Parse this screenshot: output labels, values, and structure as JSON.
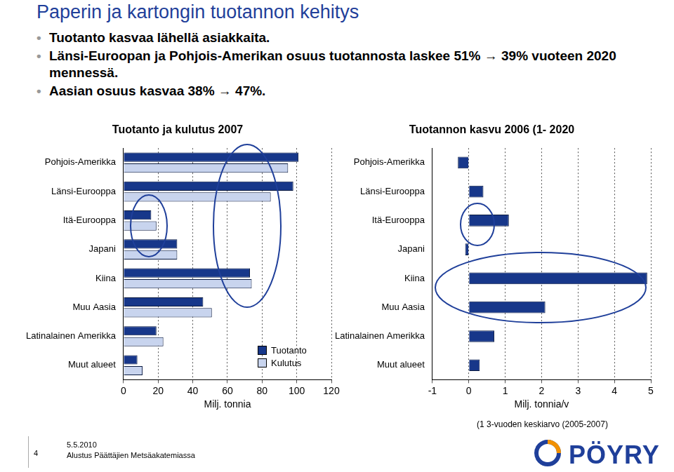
{
  "header": {
    "title": "Paperin ja kartongin tuotannon kehitys",
    "bullets": [
      "Tuotanto kasvaa lähellä asiakkaita.",
      "Länsi-Euroopan ja Pohjois-Amerikan osuus tuotannosta laskee 51% → 39% vuoteen 2020 mennessä.",
      "Aasian osuus kasvaa 38% → 47%."
    ]
  },
  "chart_data": [
    {
      "type": "bar",
      "orientation": "horizontal",
      "title": "Tuotanto ja kulutus 2007",
      "categories": [
        "Pohjois-Amerikka",
        "Länsi-Eurooppa",
        "Itä-Eurooppa",
        "Japani",
        "Kiina",
        "Muu Aasia",
        "Latinalainen Amerikka",
        "Muut alueet"
      ],
      "series": [
        {
          "name": "Tuotanto",
          "color": "#17378a",
          "values": [
            101,
            98,
            16,
            31,
            73,
            46,
            19,
            8
          ]
        },
        {
          "name": "Kulutus",
          "color": "#c8d4ee",
          "values": [
            95,
            85,
            19,
            31,
            74,
            51,
            23,
            11
          ]
        }
      ],
      "xlabel": "Milj. tonnia",
      "xlim": [
        0,
        120
      ],
      "xticks": [
        0,
        20,
        40,
        60,
        80,
        100,
        120
      ],
      "grid": true,
      "legend": "lower right"
    },
    {
      "type": "bar",
      "orientation": "horizontal",
      "title": "Tuotannon kasvu 2006 (1- 2020",
      "categories": [
        "Pohjois-Amerikka",
        "Länsi-Eurooppa",
        "Itä-Eurooppa",
        "Japani",
        "Kiina",
        "Muu Aasia",
        "Latinalainen Amerikka",
        "Muut alueet"
      ],
      "values": [
        -0.3,
        0.4,
        1.1,
        -0.1,
        4.9,
        2.1,
        0.7,
        0.3
      ],
      "color": "#17378a",
      "xlabel": "Milj. tonnia/v",
      "xlim": [
        -1,
        5
      ],
      "xticks": [
        -1,
        0,
        1,
        2,
        3,
        4,
        5
      ],
      "grid": true,
      "annotations": [
        "(1 3-vuoden keskiarvo (2005-2007)"
      ]
    }
  ],
  "footer": {
    "page": "4",
    "date": "5.5.2010",
    "text": "Alustus Päättäjien Metsäakatemiassa",
    "logo": "PÖYRY"
  }
}
